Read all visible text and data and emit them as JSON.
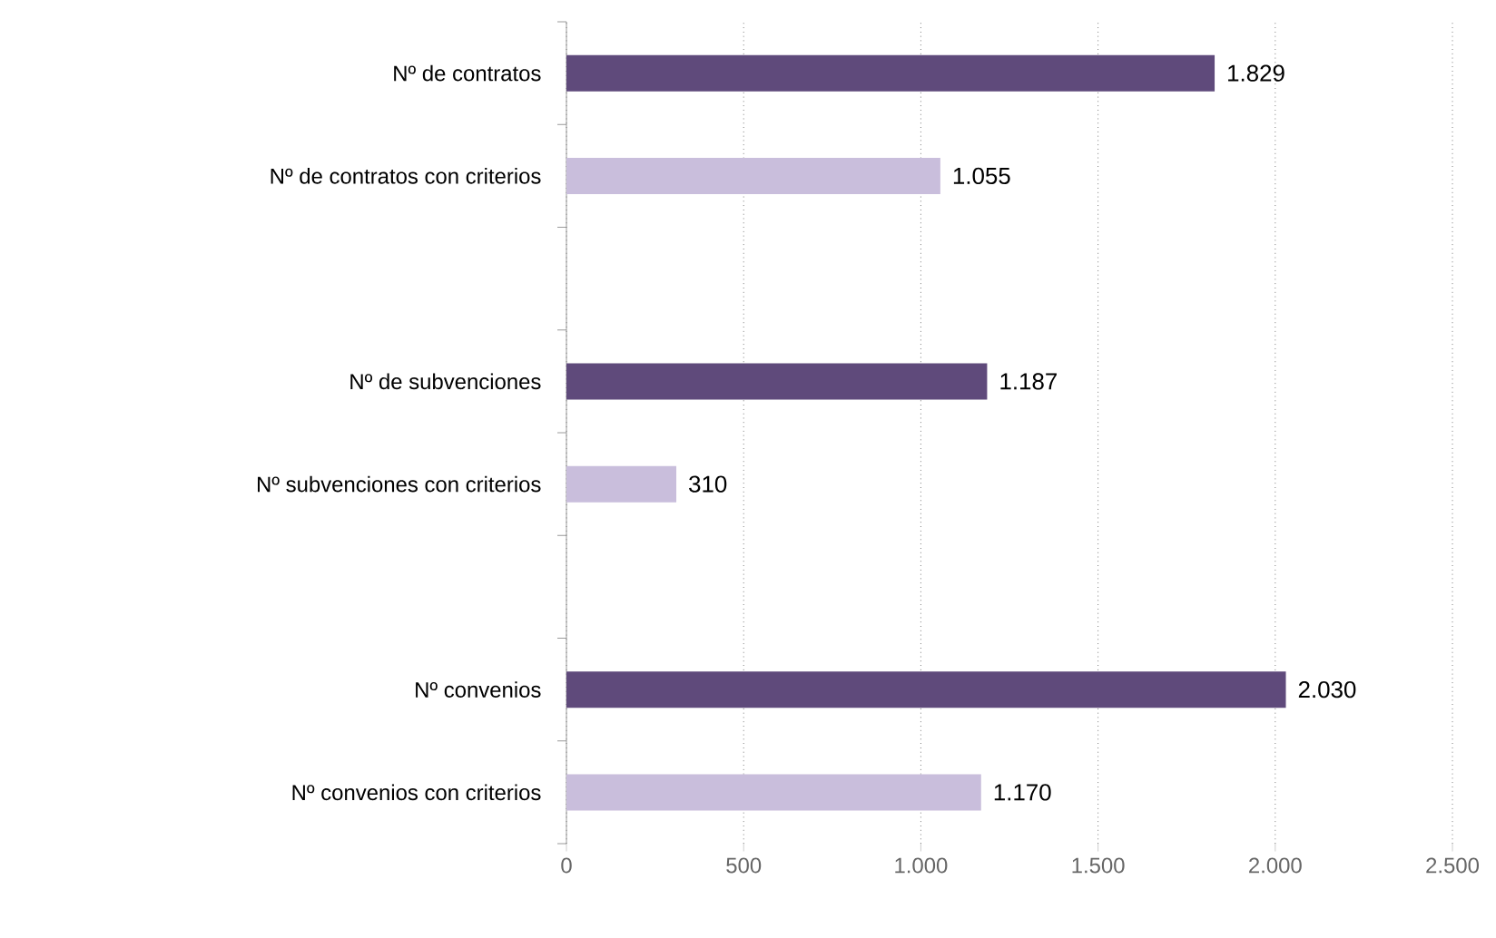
{
  "chart_data": {
    "type": "bar",
    "orientation": "horizontal",
    "categories": [
      "Nº de contratos",
      "Nº de contratos con criterios",
      null,
      "Nº  de subvenciones",
      "Nº subvenciones con criterios",
      null,
      "Nº convenios",
      "Nº convenios con criterios"
    ],
    "values": [
      1829,
      1055,
      null,
      1187,
      310,
      null,
      2030,
      1170
    ],
    "colors": [
      "#5f4a7b",
      "#c9bedc",
      null,
      "#5f4a7b",
      "#c9bedc",
      null,
      "#5f4a7b",
      "#c9bedc"
    ],
    "value_labels": [
      "1.829",
      "1.055",
      null,
      "1.187",
      "310",
      null,
      "2.030",
      "1.170"
    ],
    "xlim": [
      0,
      2500
    ],
    "xticks": [
      0,
      500,
      {
        "value": 1000,
        "label": "1.000"
      },
      {
        "value": 1500,
        "label": "1.500"
      },
      {
        "value": 2000,
        "label": "2.000"
      },
      {
        "value": 2500,
        "label": "2.500"
      }
    ],
    "grid": "x"
  }
}
